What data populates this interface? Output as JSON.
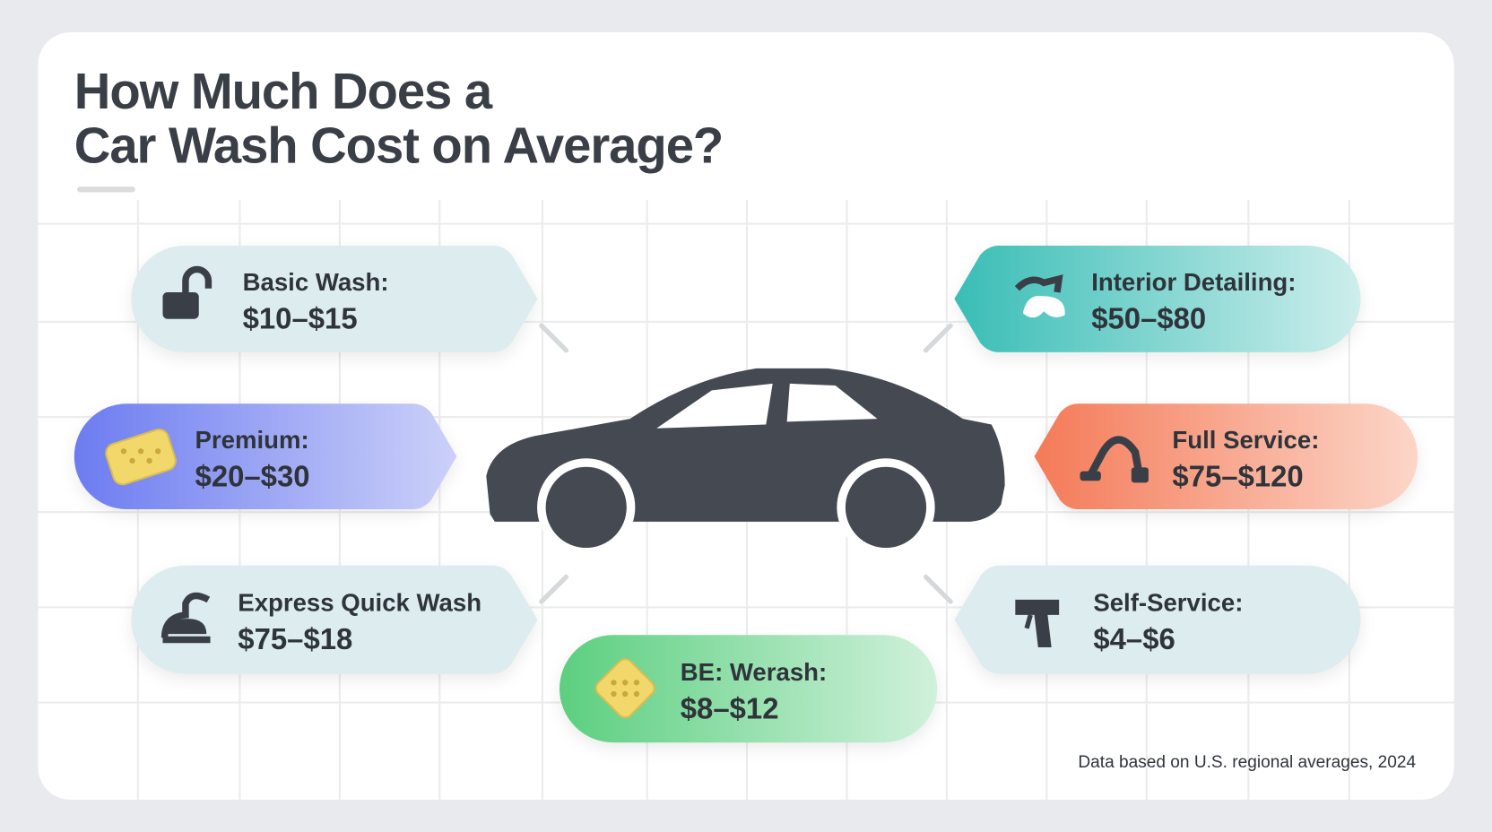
{
  "title": {
    "lines": [
      "How Much Does a",
      "Car Wash Cost on Average?"
    ]
  },
  "items": [
    {
      "label": "Basic Wash:",
      "price": "$10–$15"
    },
    {
      "label": "Premium:",
      "price": "$20–$30"
    },
    {
      "label": "Express Quick Wash",
      "price": "$75–$18"
    },
    {
      "label": "BE: Werash:",
      "price": "$8–$12"
    },
    {
      "label": "Interior Detailing:",
      "price": "$50–$80"
    },
    {
      "label": "Full Service:",
      "price": "$75–$120"
    },
    {
      "label": "Self-Service:",
      "price": "$4–$6"
    }
  ],
  "footnote": "Data based on U.S. regional averages, 2024"
}
